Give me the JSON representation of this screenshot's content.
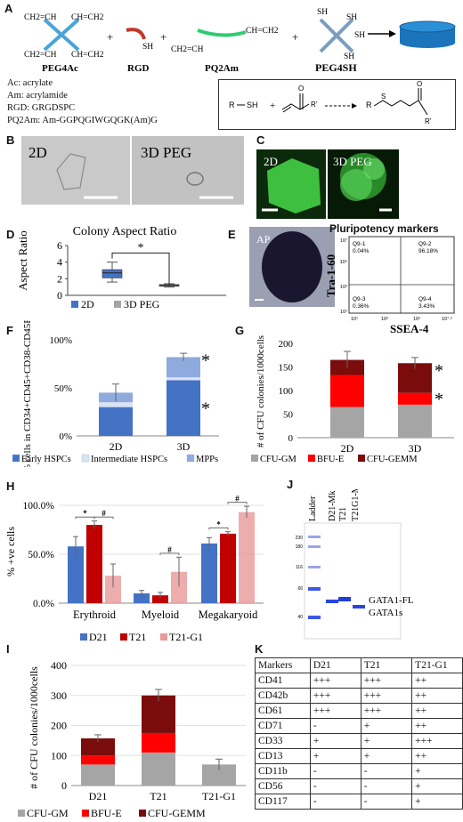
{
  "panelA": {
    "label": "A",
    "items": [
      {
        "name": "PEG4Ac",
        "groups": [
          "CH2=CH",
          "CH=CH2",
          "CH2=CH",
          "CH=CH2"
        ]
      },
      {
        "name": "RGD",
        "group": "SH"
      },
      {
        "name": "PQ2Am",
        "groups": [
          "CH2=CH",
          "CH=CH2"
        ]
      },
      {
        "name": "PEG4SH",
        "groups": [
          "SH",
          "SH",
          "SH",
          "SH"
        ]
      }
    ],
    "plus": "+",
    "definitions": [
      "Ac: acrylate",
      "Am: acrylamide",
      "RGD: GRGDSPC",
      "PQ2Am: Am-GGPQGIWGQGK(Am)G"
    ],
    "reaction": {
      "left": "R",
      "sh": "SH",
      "o": "O",
      "r2": "R'",
      "s": "S",
      "r": "R",
      "r3": "R'",
      "plus": "+"
    }
  },
  "panelB": {
    "label": "B",
    "left": "2D",
    "right": "3D PEG"
  },
  "panelC": {
    "label": "C",
    "left": "2D",
    "right": "3D PEG"
  },
  "panelD": {
    "label": "D",
    "chart_data": {
      "type": "box",
      "title": "Colony Aspect Ratio",
      "ylabel": "Aspect Ratio",
      "ylim": [
        0,
        6
      ],
      "yticks": [
        "0",
        "2",
        "4",
        "6"
      ],
      "series": [
        {
          "name": "2D",
          "color": "#4472c4",
          "min": 1.6,
          "q1": 2.1,
          "median": 2.7,
          "q3": 3.1,
          "max": 4.0
        },
        {
          "name": "3D PEG",
          "color": "#a5a5a5",
          "min": 1.0,
          "q1": 1.1,
          "median": 1.2,
          "q3": 1.3,
          "max": 1.4
        }
      ],
      "significance": "*"
    }
  },
  "panelE": {
    "label": "E",
    "ap": "AP",
    "title": "Pluripotency markers",
    "ylabel": "Tra-1-60",
    "xlabel": "SSEA-4",
    "quadrants": [
      {
        "id": "Q9-1",
        "value": "0.04%"
      },
      {
        "id": "Q9-2",
        "value": "96.18%"
      },
      {
        "id": "Q9-3",
        "value": "0.36%"
      },
      {
        "id": "Q9-4",
        "value": "3.43%"
      }
    ],
    "yticks": [
      "10⁷",
      "10⁵",
      "10³",
      "10¹"
    ],
    "xticks": [
      "10¹",
      "10³",
      "10⁵",
      "10⁷·²"
    ]
  },
  "panelF": {
    "label": "F",
    "chart_data": {
      "type": "bar",
      "stacked": true,
      "categories": [
        "2D",
        "3D"
      ],
      "ylabel": "% cells in CD34+CD45+CD38-CD45RA-",
      "yticks": [
        "0%",
        "50%",
        "100%"
      ],
      "ylim": [
        0,
        100
      ],
      "series": [
        {
          "name": "Early HSPCs",
          "color": "#4472c4",
          "values": [
            30,
            58
          ]
        },
        {
          "name": "Intermediate HSPCs",
          "color": "#dae3f3",
          "values": [
            5,
            3
          ]
        },
        {
          "name": "MPPs",
          "color": "#8faadc",
          "values": [
            10,
            21
          ]
        }
      ],
      "errors": [
        9,
        4
      ],
      "significance": [
        "*",
        "*"
      ]
    }
  },
  "panelG": {
    "label": "G",
    "chart_data": {
      "type": "bar",
      "stacked": true,
      "categories": [
        "2D",
        "3D"
      ],
      "ylabel": "# of CFU colonies/1000cells",
      "yticks": [
        "0",
        "50",
        "100",
        "150",
        "200"
      ],
      "ylim": [
        0,
        200
      ],
      "series": [
        {
          "name": "CFU-GM",
          "color": "#a5a5a5",
          "values": [
            65,
            70
          ]
        },
        {
          "name": "BFU-E",
          "color": "#ff0000",
          "values": [
            68,
            25
          ]
        },
        {
          "name": "CFU-GEMM",
          "color": "#7b0c0c",
          "values": [
            32,
            63
          ]
        }
      ],
      "errors": [
        18,
        12
      ],
      "significance": [
        "*",
        "*"
      ]
    }
  },
  "panelH": {
    "label": "H",
    "chart_data": {
      "type": "bar",
      "categories": [
        "Erythroid",
        "Myeloid",
        "Megakaryoid"
      ],
      "ylabel": "% +ve cells",
      "yticks": [
        "0.0%",
        "50.0%",
        "100.0%"
      ],
      "ylim": [
        0,
        100
      ],
      "series": [
        {
          "name": "D21",
          "color": "#4472c4",
          "values": [
            58,
            10,
            61
          ]
        },
        {
          "name": "T21",
          "color": "#c00000",
          "values": [
            80,
            8,
            71
          ]
        },
        {
          "name": "T21-G1",
          "color": "#ea9999",
          "values": [
            28,
            32,
            93
          ]
        }
      ],
      "errors": [
        [
          10,
          3,
          6
        ],
        [
          4,
          3,
          2
        ],
        [
          12,
          15,
          6
        ]
      ],
      "marks": [
        {
          "category": 0,
          "a": 0,
          "b": 1,
          "symbol": "*"
        },
        {
          "category": 0,
          "a": 1,
          "b": 2,
          "symbol": "#"
        },
        {
          "category": 1,
          "a": 1,
          "b": 2,
          "symbol": "#"
        },
        {
          "category": 2,
          "a": 0,
          "b": 1,
          "symbol": "*"
        },
        {
          "category": 2,
          "a": 1,
          "b": 2,
          "symbol": "#"
        }
      ]
    }
  },
  "panelJ": {
    "label": "J",
    "lanes": [
      "Ladder",
      "D21-Mk",
      "T21",
      "T21G1-Mk"
    ],
    "markers": [
      "230",
      "180",
      "116",
      "66",
      "40"
    ],
    "bands": [
      "GATA1-FL",
      "GATA1s"
    ]
  },
  "panelI": {
    "label": "I",
    "chart_data": {
      "type": "bar",
      "stacked": true,
      "categories": [
        "D21",
        "T21",
        "T21-G1"
      ],
      "ylabel": "# of CFU colonies/1000cells",
      "yticks": [
        "0",
        "100",
        "200",
        "300",
        "400"
      ],
      "ylim": [
        0,
        400
      ],
      "series": [
        {
          "name": "CFU-GM",
          "color": "#a5a5a5",
          "values": [
            70,
            110,
            70
          ]
        },
        {
          "name": "BFU-E",
          "color": "#ff0000",
          "values": [
            30,
            65,
            0
          ]
        },
        {
          "name": "CFU-GEMM",
          "color": "#7b0c0c",
          "values": [
            57,
            125,
            0
          ]
        }
      ],
      "errors": [
        12,
        20,
        18
      ]
    }
  },
  "panelK": {
    "label": "K",
    "header": [
      "Markers",
      "D21",
      "T21",
      "T21-G1"
    ],
    "rows": [
      [
        "CD41",
        "+++",
        "+++",
        "++"
      ],
      [
        "CD42b",
        "+++",
        "+++",
        "++"
      ],
      [
        "CD61",
        "+++",
        "+++",
        "++"
      ],
      [
        "CD71",
        "-",
        "+",
        "++"
      ],
      [
        "CD33",
        "+",
        "+",
        "+++"
      ],
      [
        "CD13",
        "+",
        "+",
        "++"
      ],
      [
        "CD11b",
        "-",
        "-",
        "+"
      ],
      [
        "CD56",
        "-",
        "-",
        "+"
      ],
      [
        "CD117",
        "-",
        "-",
        "+"
      ]
    ]
  }
}
